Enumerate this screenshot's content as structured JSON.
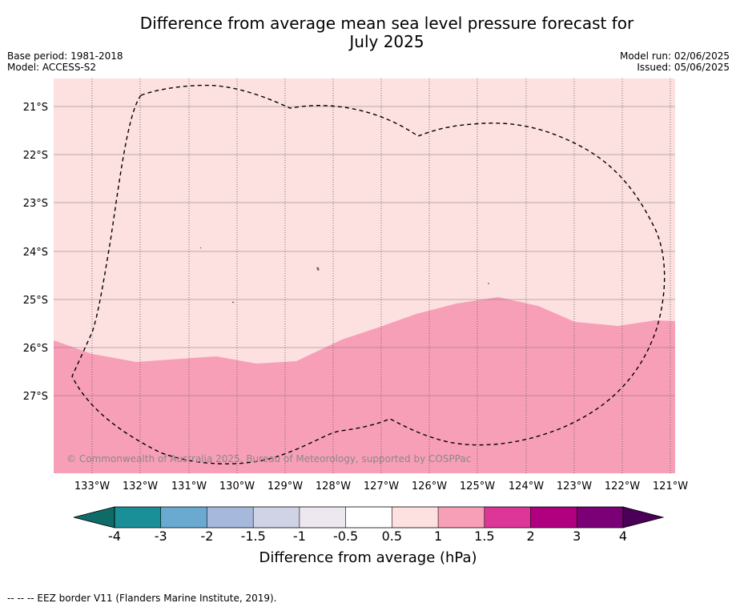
{
  "title": "Difference from average mean sea level pressure forecast for July 2025",
  "title_line1": "Difference from average mean sea level pressure forecast for",
  "title_line2": "July 2025",
  "base_period": "Base period: 1981-2018",
  "model": "Model: ACCESS-S2",
  "model_run": "Model run: 02/06/2025",
  "issued": "Issued: 05/06/2025",
  "copyright": "© Commonwealth of Australia 2025, Bureau of Meteorology, supported by COSPPac",
  "footer_legend": "-- -- -- EEZ border V11 (Flanders Marine Institute, 2019).",
  "lat_labels": [
    "21°S",
    "22°S",
    "23°S",
    "24°S",
    "25°S",
    "26°S",
    "27°S"
  ],
  "lon_labels": [
    "133°W",
    "132°W",
    "131°W",
    "130°W",
    "129°W",
    "128°W",
    "127°W",
    "126°W",
    "125°W",
    "124°W",
    "123°W",
    "122°W",
    "121°W"
  ],
  "colorbar": {
    "title": "Difference from average (hPa)",
    "ticks": [
      "-4",
      "-3",
      "-2",
      "-1.5",
      "-1",
      "-0.5",
      "0.5",
      "1",
      "1.5",
      "2",
      "3",
      "4"
    ],
    "colors": [
      "#0e6b68",
      "#1a8f98",
      "#6aaad0",
      "#a6b9dc",
      "#d0d2e6",
      "#ede8f0",
      "#ffffff",
      "#fde0e0",
      "#f89fb8",
      "#dc3798",
      "#b0007f",
      "#7b0078",
      "#4b0057"
    ]
  },
  "map_colors": {
    "band_0.5_1": "#fde0e0",
    "band_1_1.5": "#f89fb8"
  },
  "eez_style": "dashed black"
}
